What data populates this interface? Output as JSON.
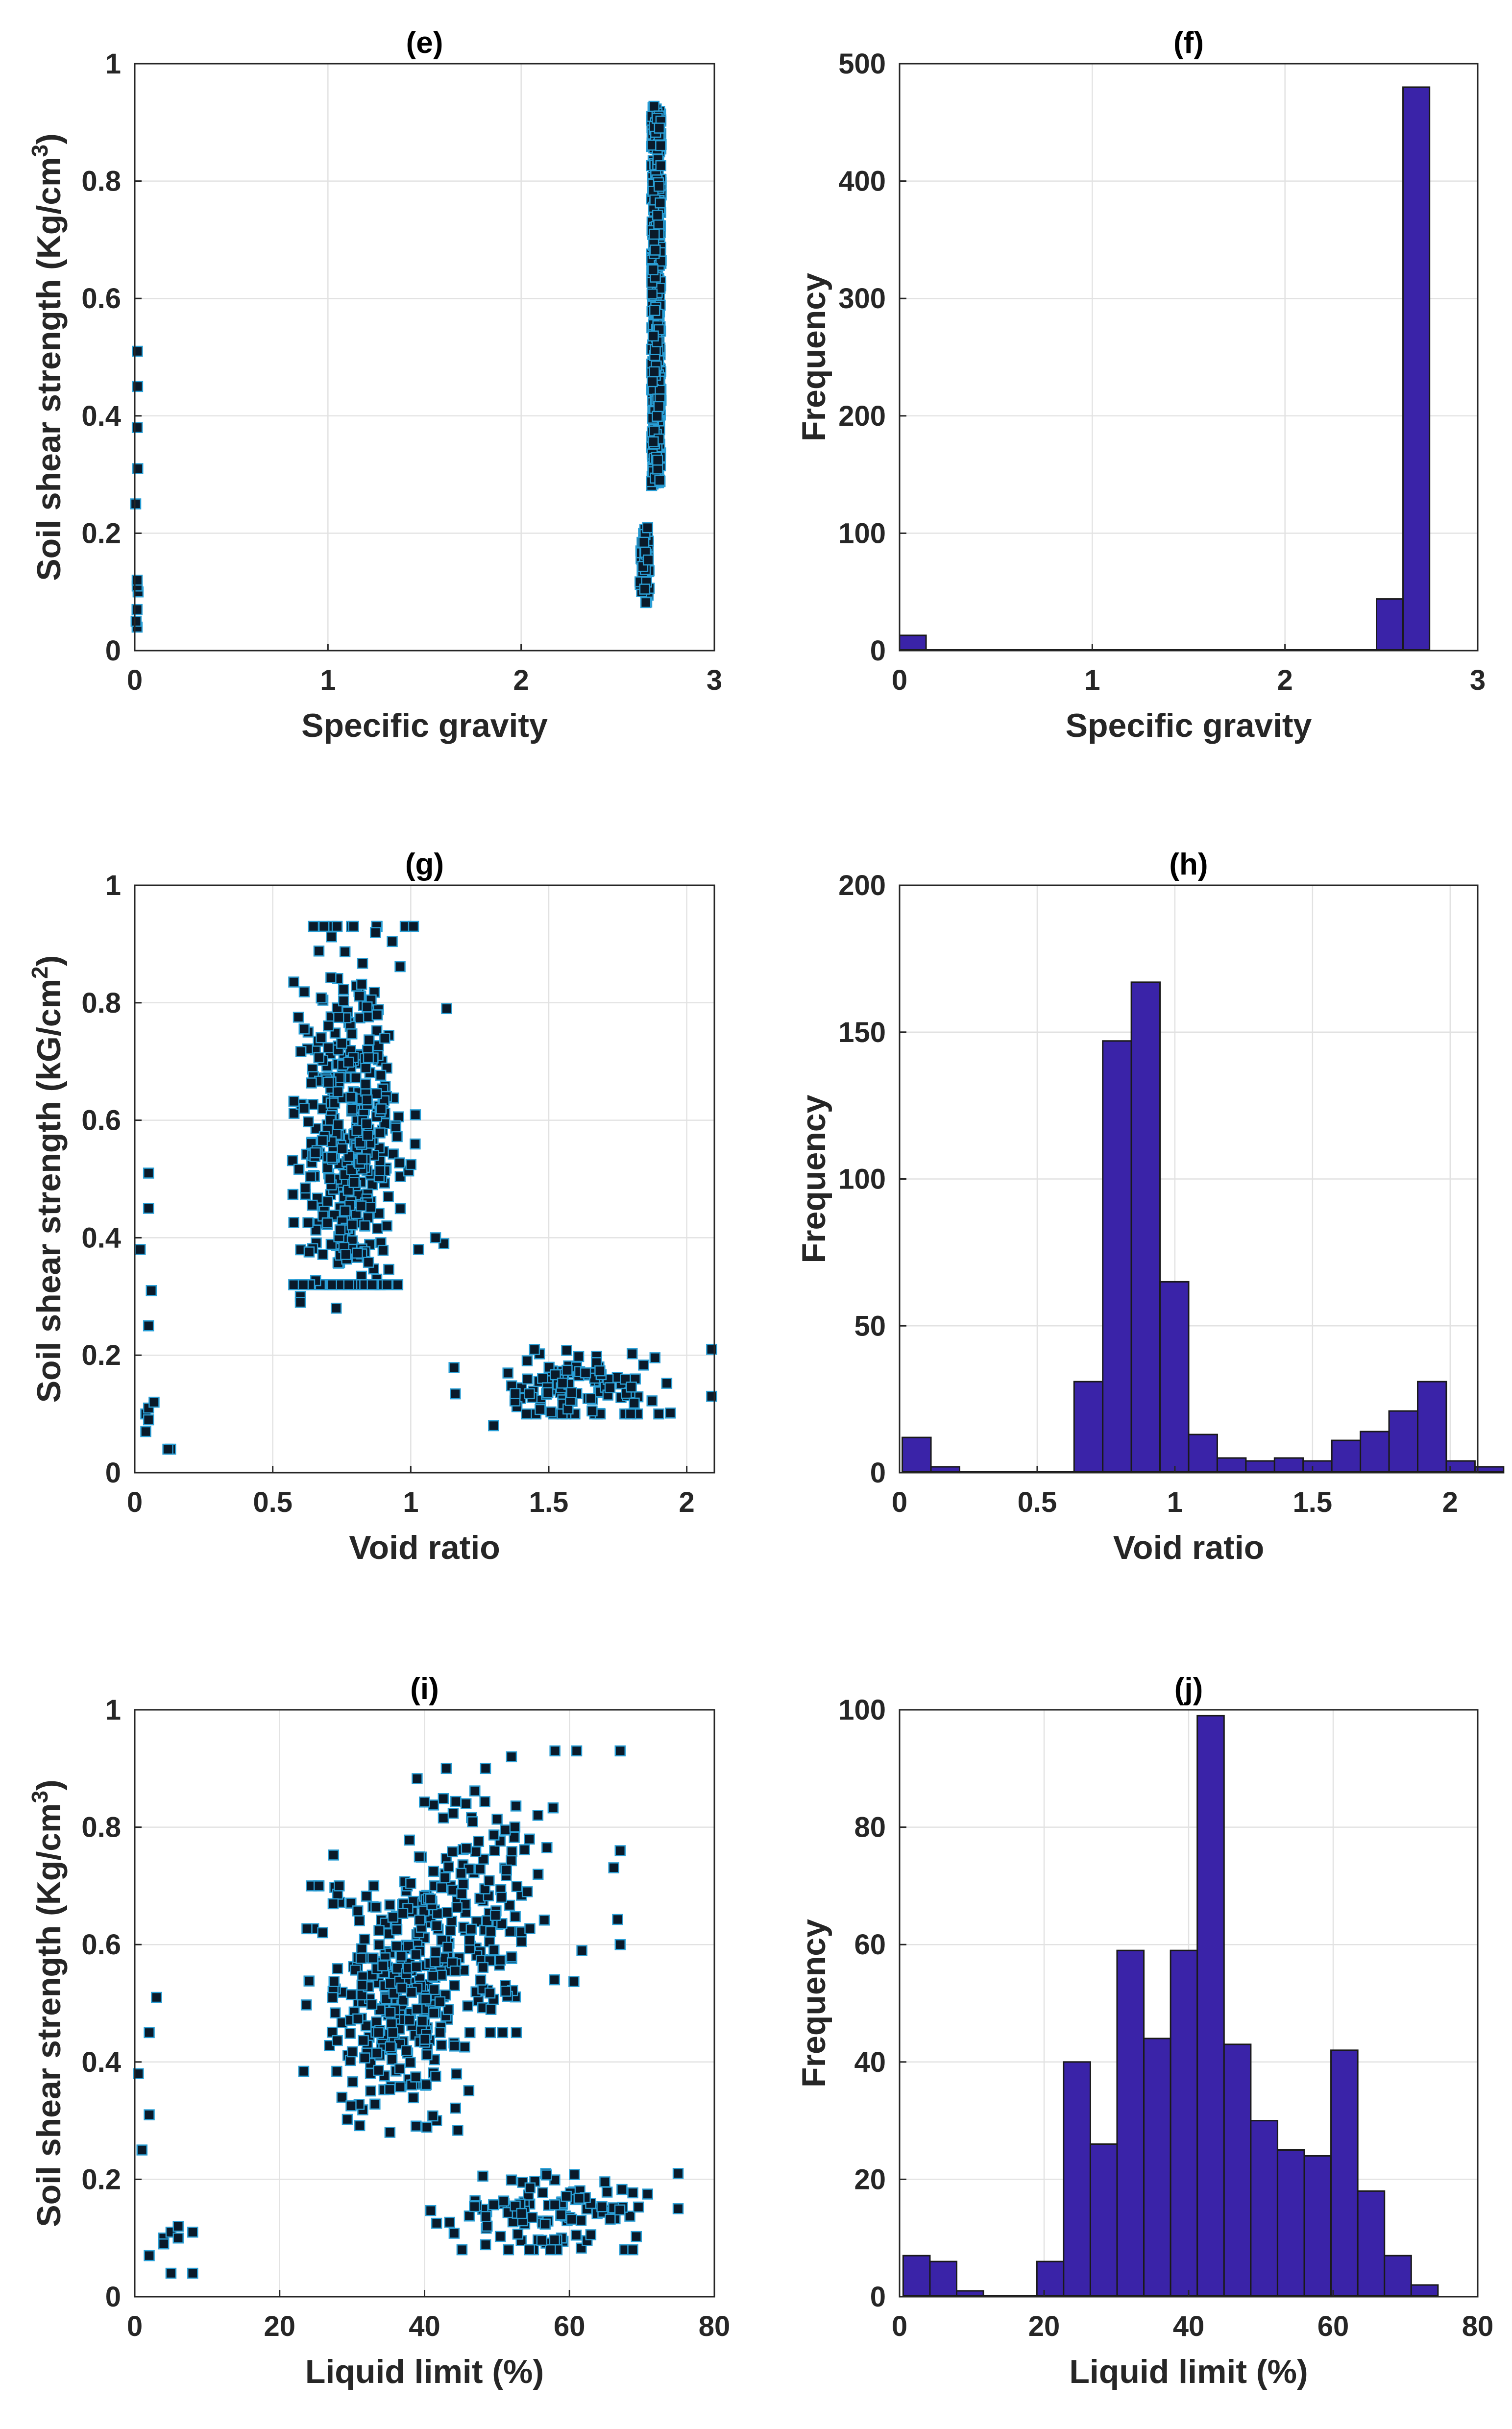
{
  "colors": {
    "bar_fill": "#3a23a8",
    "bar_stroke": "#1a1a1a",
    "marker_fill": "#0a1a2a",
    "marker_stroke": "#2a9fd6",
    "grid": "#e2e2e2",
    "axis": "#262626"
  },
  "chart_data": [
    {
      "id": "e",
      "type": "scatter",
      "title": "(e)",
      "xlabel": "Specific gravity",
      "ylabel": "Soil shear strength (Kg/cm",
      "ylabel_sup": "3",
      "ylabel_close": ")",
      "xlim": [
        0,
        3
      ],
      "ylim": [
        0,
        1
      ],
      "xticks": [
        0,
        1,
        2,
        3
      ],
      "xtick_labels": [
        "0",
        "1",
        "2",
        "3"
      ],
      "yticks": [
        0,
        0.2,
        0.4,
        0.6,
        0.8,
        1
      ],
      "ytick_labels": [
        "0",
        "0.2",
        "0.4",
        "0.6",
        "0.8",
        "1"
      ],
      "grid": true,
      "groups": [
        {
          "x_center": 0.01,
          "x_spread": 0.015,
          "y_values": [
            0.04,
            0.05,
            0.07,
            0.1,
            0.11,
            0.12,
            0.25,
            0.31,
            0.38,
            0.45,
            0.51
          ]
        },
        {
          "x_center": 2.64,
          "x_spread": 0.05,
          "y_min": 0.08,
          "y_max": 0.21,
          "count": 45
        },
        {
          "x_center": 2.7,
          "x_spread": 0.05,
          "y_min": 0.28,
          "y_max": 0.93,
          "count": 420
        }
      ]
    },
    {
      "id": "f",
      "type": "bar",
      "title": "(f)",
      "xlabel": "Specific gravity",
      "ylabel": "Frequency",
      "xlim": [
        0,
        3
      ],
      "ylim": [
        0,
        500
      ],
      "xticks": [
        0,
        1,
        2,
        3
      ],
      "xtick_labels": [
        "0",
        "1",
        "2",
        "3"
      ],
      "yticks": [
        0,
        100,
        200,
        300,
        400,
        500
      ],
      "ytick_labels": [
        "0",
        "100",
        "200",
        "300",
        "400",
        "500"
      ],
      "grid": true,
      "bin_start": 0,
      "bin_width": 0.1375,
      "counts": [
        13,
        0,
        0,
        0,
        0,
        0,
        0,
        0,
        0,
        0,
        0,
        0,
        0,
        0,
        0,
        0,
        0,
        0,
        44,
        480
      ]
    },
    {
      "id": "g",
      "type": "scatter",
      "title": "(g)",
      "xlabel": "Void ratio",
      "ylabel": "Soil shear strength (kG/cm",
      "ylabel_sup": "2",
      "ylabel_close": ")",
      "xlim": [
        0,
        2.1
      ],
      "ylim": [
        0,
        1
      ],
      "xticks": [
        0,
        0.5,
        1,
        1.5,
        2
      ],
      "xtick_labels": [
        "0",
        "0.5",
        "1",
        "1.5",
        "2"
      ],
      "yticks": [
        0,
        0.2,
        0.4,
        0.6,
        0.8,
        1
      ],
      "ytick_labels": [
        "0",
        "0.2",
        "0.4",
        "0.6",
        "0.8",
        "1"
      ],
      "grid": true,
      "points": [
        [
          0.02,
          0.38
        ],
        [
          0.05,
          0.51
        ],
        [
          0.05,
          0.45
        ],
        [
          0.06,
          0.31
        ],
        [
          0.05,
          0.25
        ],
        [
          0.04,
          0.1
        ],
        [
          0.05,
          0.11
        ],
        [
          0.07,
          0.12
        ],
        [
          0.05,
          0.09
        ],
        [
          0.04,
          0.07
        ],
        [
          0.13,
          0.04
        ],
        [
          0.12,
          0.04
        ],
        [
          2.09,
          0.21
        ],
        [
          2.09,
          0.13
        ],
        [
          0.98,
          0.93
        ],
        [
          1.01,
          0.93
        ],
        [
          1.13,
          0.79
        ],
        [
          1.12,
          0.39
        ],
        [
          1.09,
          0.4
        ],
        [
          0.6,
          0.3
        ],
        [
          0.6,
          0.29
        ],
        [
          0.73,
          0.28
        ],
        [
          1.3,
          0.08
        ]
      ],
      "clusters": [
        {
          "x_center": 0.77,
          "x_spread": 0.22,
          "y_min": 0.32,
          "y_max": 0.93,
          "y_mean": 0.55,
          "count": 430
        },
        {
          "x_center": 1.6,
          "x_spread": 0.38,
          "y_min": 0.1,
          "y_max": 0.21,
          "y_mean": 0.145,
          "count": 120
        }
      ]
    },
    {
      "id": "h",
      "type": "bar",
      "title": "(h)",
      "xlabel": "Void ratio",
      "ylabel": "Frequency",
      "xlim": [
        0,
        2.1
      ],
      "ylim": [
        0,
        200
      ],
      "xticks": [
        0,
        0.5,
        1,
        1.5,
        2
      ],
      "xtick_labels": [
        "0",
        "0.5",
        "1",
        "1.5",
        "2"
      ],
      "yticks": [
        0,
        50,
        100,
        150,
        200
      ],
      "ytick_labels": [
        "0",
        "50",
        "100",
        "150",
        "200"
      ],
      "grid": true,
      "bin_start": 0.01,
      "bin_width": 0.104,
      "counts": [
        12,
        2,
        0,
        0,
        0,
        0,
        31,
        147,
        167,
        65,
        13,
        5,
        4,
        5,
        4,
        11,
        14,
        21,
        31,
        4,
        2
      ]
    },
    {
      "id": "i",
      "type": "scatter",
      "title": "(i)",
      "xlabel": "Liquid limit (%)",
      "ylabel": "Soil shear strength (Kg/cm",
      "ylabel_sup": "3",
      "ylabel_close": ")",
      "xlim": [
        0,
        80
      ],
      "ylim": [
        0,
        1
      ],
      "xticks": [
        0,
        20,
        40,
        60,
        80
      ],
      "xtick_labels": [
        "0",
        "20",
        "40",
        "60",
        "80"
      ],
      "yticks": [
        0,
        0.2,
        0.4,
        0.6,
        0.8,
        1
      ],
      "ytick_labels": [
        "0",
        "0.2",
        "0.4",
        "0.6",
        "0.8",
        "1"
      ],
      "grid": true,
      "points": [
        [
          0.5,
          0.38
        ],
        [
          2,
          0.45
        ],
        [
          3,
          0.51
        ],
        [
          2,
          0.31
        ],
        [
          1,
          0.25
        ],
        [
          2,
          0.07
        ],
        [
          4,
          0.1
        ],
        [
          5,
          0.11
        ],
        [
          6,
          0.12
        ],
        [
          5,
          0.04
        ],
        [
          8,
          0.04
        ],
        [
          6,
          0.1
        ],
        [
          8,
          0.11
        ],
        [
          4,
          0.09
        ],
        [
          75,
          0.21
        ],
        [
          75,
          0.15
        ],
        [
          67,
          0.93
        ],
        [
          61,
          0.93
        ],
        [
          67,
          0.76
        ],
        [
          67,
          0.6
        ],
        [
          43,
          0.9
        ],
        [
          52,
          0.92
        ],
        [
          58,
          0.93
        ]
      ],
      "clusters": [
        {
          "x_center": 36,
          "x_spread": 12,
          "y_min": 0.28,
          "y_max": 0.7,
          "y_mean": 0.5,
          "count": 280
        },
        {
          "x_center": 47,
          "x_spread": 14,
          "y_min": 0.45,
          "y_max": 0.9,
          "y_mean": 0.65,
          "count": 170
        },
        {
          "x_center": 57,
          "x_spread": 15,
          "y_min": 0.08,
          "y_max": 0.21,
          "y_mean": 0.145,
          "count": 110
        }
      ]
    },
    {
      "id": "j",
      "type": "bar",
      "title": "(j)",
      "xlabel": "Liquid limit (%)",
      "ylabel": "Frequency",
      "xlim": [
        0,
        80
      ],
      "ylim": [
        0,
        100
      ],
      "xticks": [
        0,
        20,
        40,
        60,
        80
      ],
      "xtick_labels": [
        "0",
        "20",
        "40",
        "60",
        "80"
      ],
      "yticks": [
        0,
        20,
        40,
        60,
        80,
        100
      ],
      "ytick_labels": [
        "0",
        "20",
        "40",
        "60",
        "80",
        "100"
      ],
      "grid": true,
      "bin_start": 0.5,
      "bin_width": 3.7,
      "counts": [
        7,
        6,
        1,
        0,
        0,
        6,
        40,
        26,
        59,
        44,
        59,
        99,
        43,
        30,
        25,
        24,
        42,
        18,
        7,
        2
      ]
    }
  ]
}
